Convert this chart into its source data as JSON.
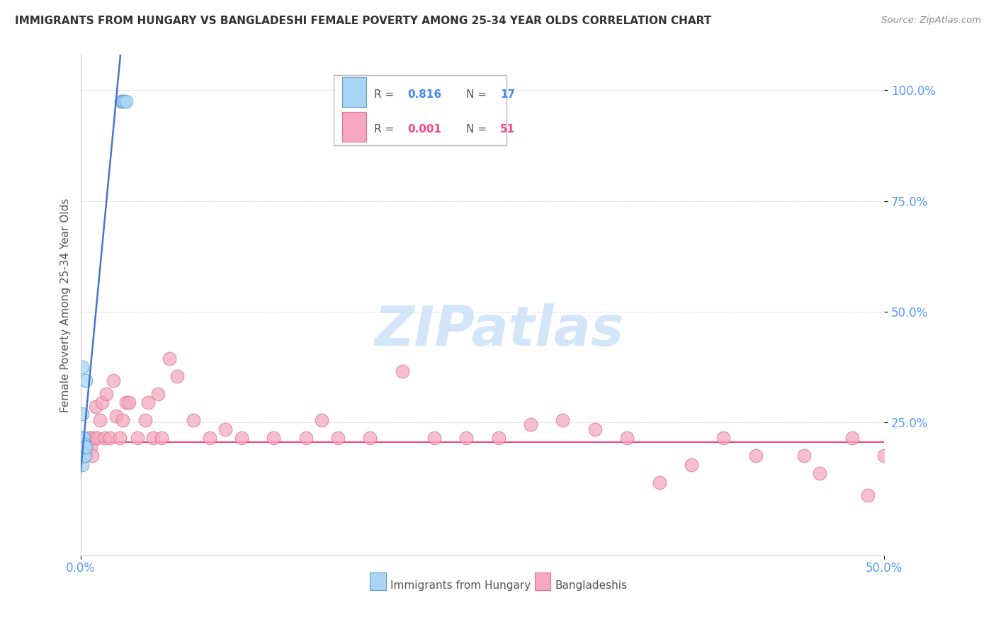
{
  "title": "IMMIGRANTS FROM HUNGARY VS BANGLADESHI FEMALE POVERTY AMONG 25-34 YEAR OLDS CORRELATION CHART",
  "source": "Source: ZipAtlas.com",
  "ylabel": "Female Poverty Among 25-34 Year Olds",
  "xlim": [
    0.0,
    0.5
  ],
  "ylim": [
    -0.05,
    1.08
  ],
  "ytick_vals": [
    0.25,
    0.5,
    0.75,
    1.0
  ],
  "ytick_labels": [
    "25.0%",
    "50.0%",
    "75.0%",
    "100.0%"
  ],
  "xtick_vals": [
    0.0,
    0.5
  ],
  "xtick_labels": [
    "0.0%",
    "50.0%"
  ],
  "legend_r1": "0.816",
  "legend_n1": "17",
  "legend_r2": "0.001",
  "legend_n2": "51",
  "blue_color": "#A8D4F5",
  "blue_edge": "#6699CC",
  "pink_color": "#F5A8C0",
  "pink_edge": "#E07090",
  "blue_line_color": "#4477CC",
  "pink_line_color": "#EE4488",
  "blue_label_color": "#4488FF",
  "pink_label_color": "#FF4488",
  "tick_color": "#5599FF",
  "grid_color": "#DDDDDD",
  "watermark_color": "#C8E0F8",
  "watermark": "ZIPatlas",
  "blue_slope": 38.0,
  "blue_intercept": 0.145,
  "pink_hline_y": 0.205,
  "hungary_x": [
    0.0008,
    0.0008,
    0.001,
    0.0012,
    0.0012,
    0.0015,
    0.0016,
    0.002,
    0.002,
    0.0022,
    0.0025,
    0.003,
    0.0032,
    0.025,
    0.026,
    0.027,
    0.028
  ],
  "hungary_y": [
    0.375,
    0.27,
    0.155,
    0.215,
    0.195,
    0.215,
    0.195,
    0.2,
    0.175,
    0.195,
    0.175,
    0.195,
    0.345,
    0.975,
    0.975,
    0.975,
    0.975
  ],
  "bangla_x": [
    0.005,
    0.006,
    0.007,
    0.008,
    0.009,
    0.01,
    0.012,
    0.013,
    0.015,
    0.016,
    0.018,
    0.02,
    0.022,
    0.024,
    0.026,
    0.028,
    0.03,
    0.035,
    0.04,
    0.042,
    0.045,
    0.048,
    0.05,
    0.055,
    0.06,
    0.07,
    0.08,
    0.09,
    0.1,
    0.12,
    0.14,
    0.16,
    0.18,
    0.2,
    0.22,
    0.24,
    0.26,
    0.28,
    0.3,
    0.34,
    0.36,
    0.4,
    0.45,
    0.48,
    0.5,
    0.15,
    0.32,
    0.38,
    0.42,
    0.46,
    0.49
  ],
  "bangla_y": [
    0.215,
    0.195,
    0.175,
    0.215,
    0.285,
    0.215,
    0.255,
    0.295,
    0.215,
    0.315,
    0.215,
    0.345,
    0.265,
    0.215,
    0.255,
    0.295,
    0.295,
    0.215,
    0.255,
    0.295,
    0.215,
    0.315,
    0.215,
    0.395,
    0.355,
    0.255,
    0.215,
    0.235,
    0.215,
    0.215,
    0.215,
    0.215,
    0.215,
    0.365,
    0.215,
    0.215,
    0.215,
    0.245,
    0.255,
    0.215,
    0.115,
    0.215,
    0.175,
    0.215,
    0.175,
    0.255,
    0.235,
    0.155,
    0.175,
    0.135,
    0.085
  ],
  "scatter_size": 180,
  "scatter_alpha": 0.75
}
